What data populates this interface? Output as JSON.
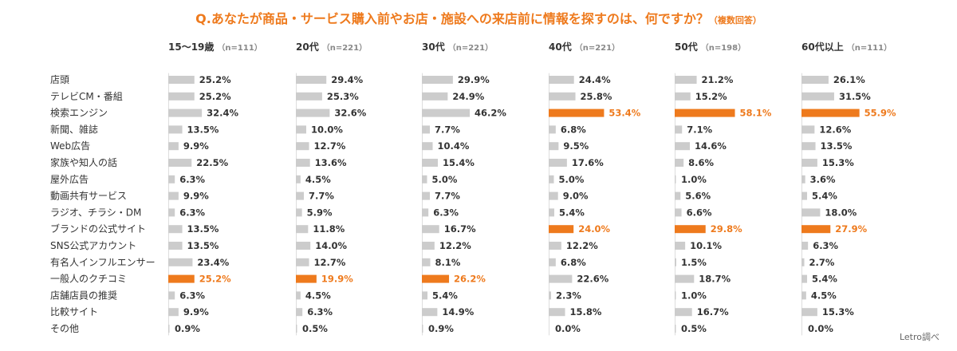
{
  "title": "Q.あなたが商品・サービス購入前やお店・施設への来店前に情報を探すのは、何ですか？",
  "title_note": "（複数回答）",
  "source": "Letro調べ",
  "colors": {
    "accent": "#ee7a1d",
    "bar": "#cccccc",
    "text": "#333333",
    "muted": "#888888"
  },
  "chart_data": {
    "type": "bar",
    "orientation": "horizontal",
    "unit": "%",
    "categories": [
      "店頭",
      "テレビCM・番組",
      "検索エンジン",
      "新聞、雑誌",
      "Web広告",
      "家族や知人の話",
      "屋外広告",
      "動画共有サービス",
      "ラジオ、チラシ・DM",
      "ブランドの公式サイト",
      "SNS公式アカウント",
      "有名人インフルエンサー",
      "一般人のクチコミ",
      "店舗店員の推奨",
      "比較サイト",
      "その他"
    ],
    "series": [
      {
        "name": "15〜19歳",
        "n": "（n=111）",
        "values": [
          25.2,
          25.2,
          32.4,
          13.5,
          9.9,
          22.5,
          6.3,
          9.9,
          6.3,
          13.5,
          13.5,
          23.4,
          25.2,
          6.3,
          9.9,
          0.9
        ],
        "highlight": [
          12
        ]
      },
      {
        "name": "20代",
        "n": "（n=221）",
        "values": [
          29.4,
          25.3,
          32.6,
          10.0,
          12.7,
          13.6,
          4.5,
          7.7,
          5.9,
          11.8,
          14.0,
          12.7,
          19.9,
          4.5,
          6.3,
          0.5
        ],
        "highlight": [
          12
        ]
      },
      {
        "name": "30代",
        "n": "（n=221）",
        "values": [
          29.9,
          24.9,
          46.2,
          7.7,
          10.4,
          15.4,
          5.0,
          7.7,
          6.3,
          16.7,
          12.2,
          8.1,
          26.2,
          5.4,
          14.9,
          0.9
        ],
        "highlight": [
          12
        ]
      },
      {
        "name": "40代",
        "n": "（n=221）",
        "values": [
          24.4,
          25.8,
          53.4,
          6.8,
          9.5,
          17.6,
          5.0,
          9.0,
          5.4,
          24.0,
          12.2,
          6.8,
          22.6,
          2.3,
          15.8,
          0.0
        ],
        "highlight": [
          2,
          9
        ]
      },
      {
        "name": "50代",
        "n": "（n=198）",
        "values": [
          21.2,
          15.2,
          58.1,
          7.1,
          14.6,
          8.6,
          1.0,
          5.6,
          6.6,
          29.8,
          10.1,
          1.5,
          18.7,
          1.0,
          16.7,
          0.5
        ],
        "highlight": [
          2,
          9
        ]
      },
      {
        "name": "60代以上",
        "n": "（n=111）",
        "values": [
          26.1,
          31.5,
          55.9,
          12.6,
          13.5,
          15.3,
          3.6,
          5.4,
          18.0,
          27.9,
          6.3,
          2.7,
          5.4,
          4.5,
          15.3,
          0.0
        ],
        "highlight": [
          2,
          9
        ]
      }
    ]
  }
}
